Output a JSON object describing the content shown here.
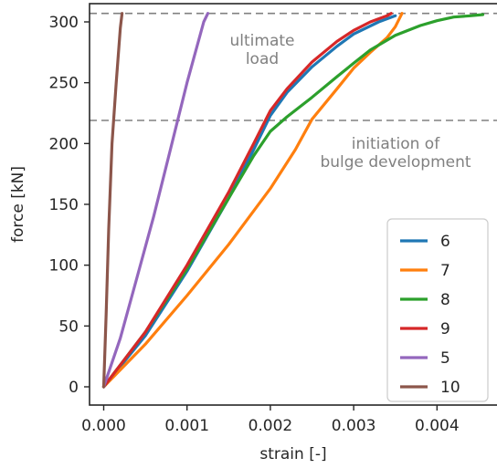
{
  "chart_data": {
    "type": "line",
    "xlabel": "strain [-]",
    "ylabel": "force [kN]",
    "xlim": [
      -0.00017,
      0.00472
    ],
    "ylim": [
      -15,
      315
    ],
    "xticks": [
      0.0,
      0.001,
      0.002,
      0.003,
      0.004
    ],
    "xtick_labels": [
      "0.000",
      "0.001",
      "0.002",
      "0.003",
      "0.004"
    ],
    "yticks": [
      0,
      50,
      100,
      150,
      200,
      250,
      300
    ],
    "ytick_labels": [
      "0",
      "50",
      "100",
      "150",
      "200",
      "250",
      "300"
    ],
    "grid": false,
    "legend_position": "lower-right",
    "hlines": [
      {
        "y": 307,
        "label": [
          "ultimate",
          "load"
        ],
        "color": "#808080",
        "style": "dashed"
      },
      {
        "y": 219,
        "label": [
          "initiation of",
          "bulge development"
        ],
        "color": "#808080",
        "style": "dashed"
      }
    ],
    "series": [
      {
        "name": "6",
        "color": "#1f77b4",
        "x": [
          0.0,
          0.0005,
          0.001,
          0.0015,
          0.0018,
          0.002,
          0.0022,
          0.0025,
          0.0028,
          0.003,
          0.0033,
          0.0035
        ],
        "y": [
          0,
          42,
          95,
          155,
          195,
          223,
          242,
          263,
          280,
          290,
          300,
          305
        ]
      },
      {
        "name": "7",
        "color": "#ff7f0e",
        "x": [
          0.0,
          0.0005,
          0.001,
          0.0015,
          0.002,
          0.0023,
          0.0025,
          0.0028,
          0.003,
          0.0032,
          0.0034,
          0.0035,
          0.00358
        ],
        "y": [
          0,
          35,
          75,
          117,
          163,
          195,
          220,
          245,
          262,
          275,
          287,
          296,
          307
        ]
      },
      {
        "name": "8",
        "color": "#2ca02c",
        "x": [
          0.0,
          0.0005,
          0.001,
          0.0015,
          0.0018,
          0.002,
          0.0022,
          0.0025,
          0.0028,
          0.003,
          0.0032,
          0.0035,
          0.0038,
          0.004,
          0.0042,
          0.0044,
          0.00455
        ],
        "y": [
          0,
          45,
          97,
          155,
          190,
          210,
          222,
          238,
          255,
          266,
          277,
          289,
          297,
          301,
          304,
          305,
          306
        ]
      },
      {
        "name": "9",
        "color": "#d62728",
        "x": [
          0.0,
          0.0005,
          0.001,
          0.0015,
          0.0018,
          0.002,
          0.0022,
          0.0025,
          0.0028,
          0.003,
          0.0032,
          0.0034,
          0.00345
        ],
        "y": [
          0,
          45,
          100,
          160,
          200,
          227,
          245,
          267,
          284,
          293,
          300,
          305,
          307
        ]
      },
      {
        "name": "5",
        "color": "#9467bd",
        "x": [
          0.0,
          0.0002,
          0.0004,
          0.0006,
          0.0008,
          0.001,
          0.0012,
          0.00125
        ],
        "y": [
          0,
          40,
          90,
          140,
          195,
          250,
          300,
          307
        ]
      },
      {
        "name": "10",
        "color": "#8c564b",
        "x": [
          0.0,
          3e-05,
          6e-05,
          0.0001,
          0.00015,
          0.0002,
          0.00022
        ],
        "y": [
          0,
          60,
          130,
          200,
          250,
          295,
          307
        ]
      }
    ]
  }
}
